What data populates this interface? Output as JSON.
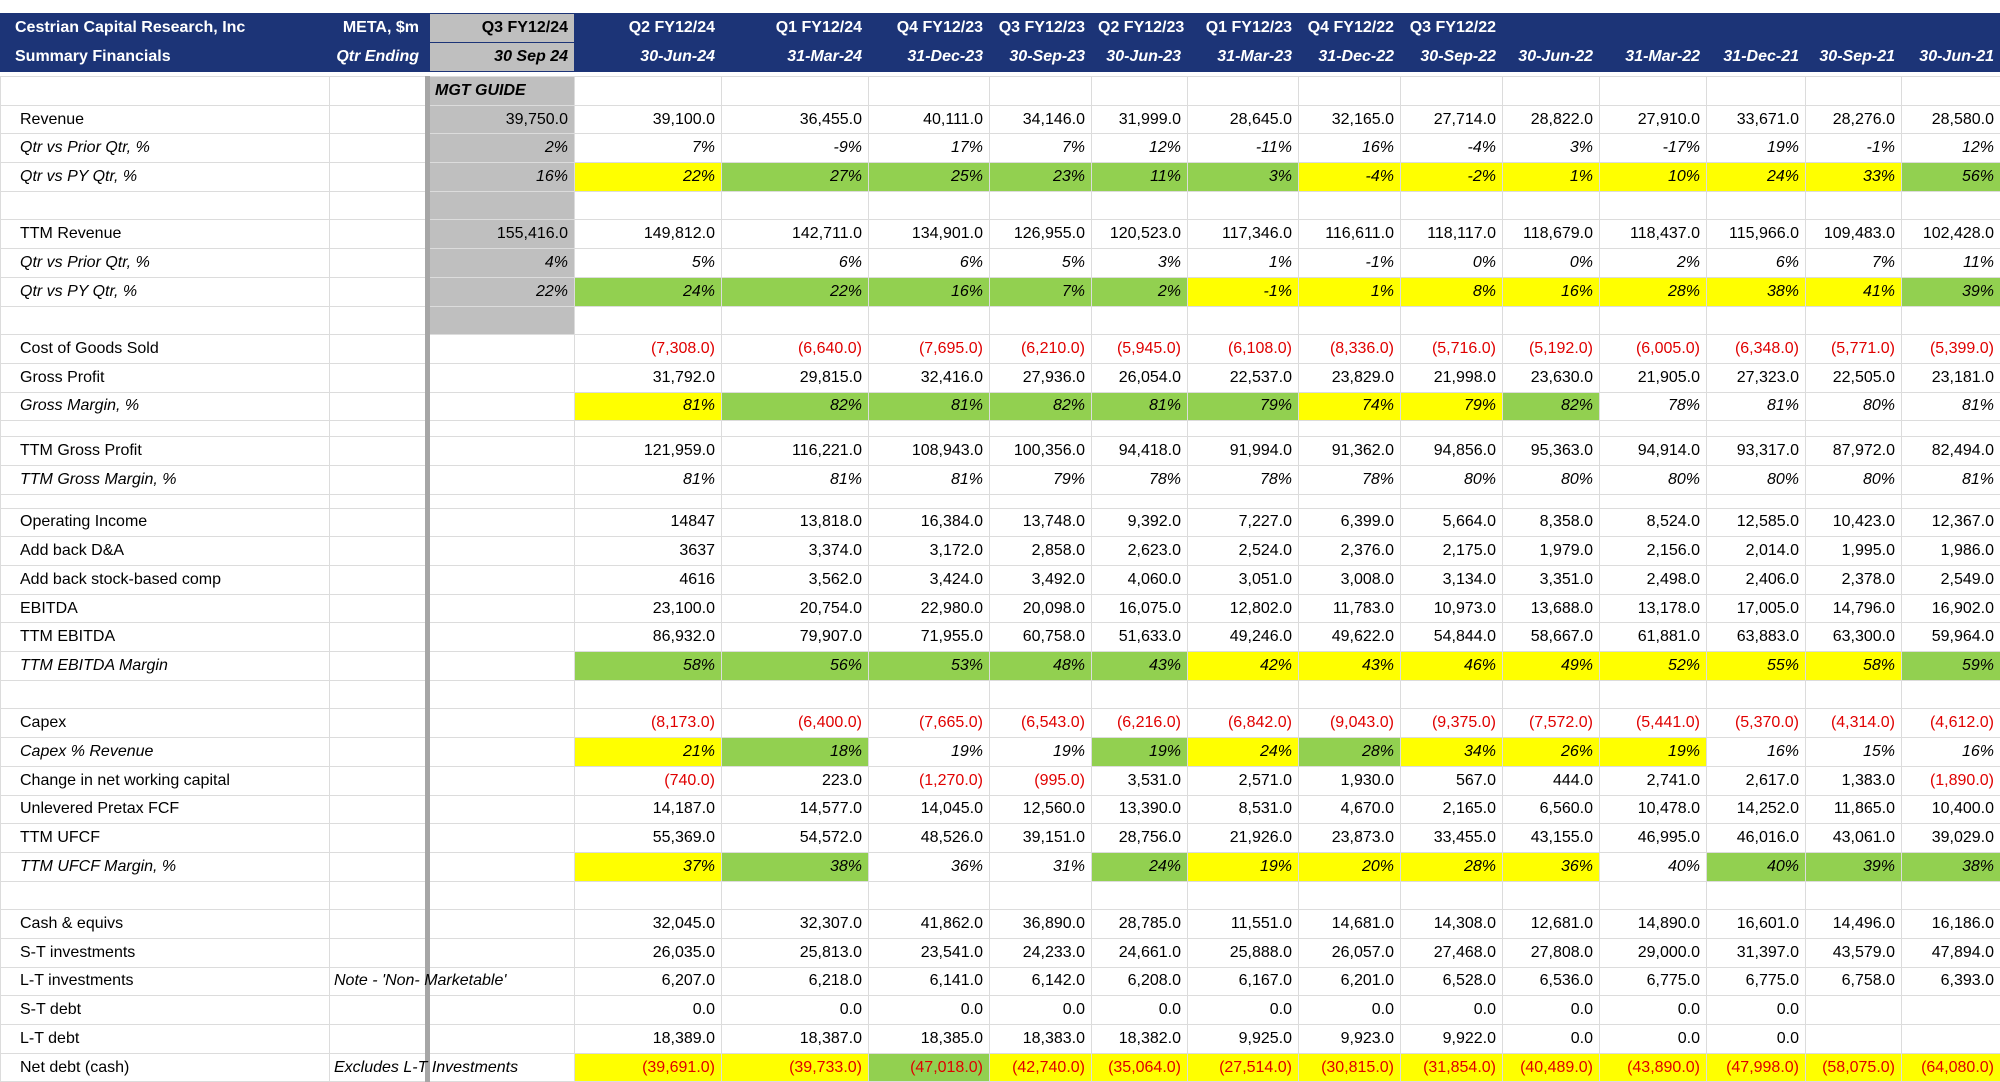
{
  "header": {
    "title": "Cestrian Capital Research, Inc",
    "subtitle": "Summary Financials",
    "ticker": "META, $m",
    "date_label": "Qtr Ending",
    "guide_label": "MGT GUIDE"
  },
  "columns": [
    {
      "period": "Q3 FY12/24",
      "date": "30 Sep 24"
    },
    {
      "period": "Q2 FY12/24",
      "date": "30-Jun-24"
    },
    {
      "period": "Q1 FY12/24",
      "date": "31-Mar-24"
    },
    {
      "period": "Q4 FY12/23",
      "date": "31-Dec-23"
    },
    {
      "period": "Q3 FY12/23",
      "date": "30-Sep-23"
    },
    {
      "period": "Q2 FY12/23",
      "date": "30-Jun-23"
    },
    {
      "period": "Q1 FY12/23",
      "date": "31-Mar-23"
    },
    {
      "period": "Q4 FY12/22",
      "date": "31-Dec-22"
    },
    {
      "period": "Q3 FY12/22",
      "date": "30-Sep-22"
    },
    {
      "date": "30-Jun-22"
    },
    {
      "date": "31-Mar-22"
    },
    {
      "date": "31-Dec-21"
    },
    {
      "date": "30-Sep-21"
    },
    {
      "date": "30-Jun-21"
    }
  ],
  "rows": [
    {
      "label": "Revenue",
      "values": [
        "39,750.0",
        "39,100.0",
        "36,455.0",
        "40,111.0",
        "34,146.0",
        "31,999.0",
        "28,645.0",
        "32,165.0",
        "27,714.0",
        "28,822.0",
        "27,910.0",
        "33,671.0",
        "28,276.0",
        "28,580.0"
      ],
      "fills": [
        "#bfbfbf",
        null,
        null,
        null,
        null,
        null,
        null,
        null,
        null,
        null,
        null,
        null,
        null,
        null
      ]
    },
    {
      "label": "Qtr vs Prior Qtr, %",
      "italic": true,
      "values": [
        "2%",
        "7%",
        "-9%",
        "17%",
        "7%",
        "12%",
        "-11%",
        "16%",
        "-4%",
        "3%",
        "-17%",
        "19%",
        "-1%",
        "12%"
      ],
      "fills": [
        "#bfbfbf",
        null,
        null,
        null,
        null,
        null,
        null,
        null,
        null,
        null,
        null,
        null,
        null,
        null
      ]
    },
    {
      "label": "Qtr vs PY Qtr, %",
      "italic": true,
      "values": [
        "16%",
        "22%",
        "27%",
        "25%",
        "23%",
        "11%",
        "3%",
        "-4%",
        "-2%",
        "1%",
        "10%",
        "24%",
        "33%",
        "56%"
      ],
      "fills": [
        "#bfbfbf",
        "#ffff00",
        "#92d050",
        "#92d050",
        "#92d050",
        "#92d050",
        "#92d050",
        "#ffff00",
        "#ffff00",
        "#ffff00",
        "#ffff00",
        "#ffff00",
        "#ffff00",
        "#92d050"
      ]
    },
    {
      "label": "TTM Revenue",
      "values": [
        "155,416.0",
        "149,812.0",
        "142,711.0",
        "134,901.0",
        "126,955.0",
        "120,523.0",
        "117,346.0",
        "116,611.0",
        "118,117.0",
        "118,679.0",
        "118,437.0",
        "115,966.0",
        "109,483.0",
        "102,428.0"
      ],
      "fills": [
        "#bfbfbf",
        null,
        null,
        null,
        null,
        null,
        null,
        null,
        null,
        null,
        null,
        null,
        null,
        null
      ]
    },
    {
      "label": "Qtr vs Prior Qtr, %",
      "italic": true,
      "values": [
        "4%",
        "5%",
        "6%",
        "6%",
        "5%",
        "3%",
        "1%",
        "-1%",
        "0%",
        "0%",
        "2%",
        "6%",
        "7%",
        "11%"
      ],
      "fills": [
        "#bfbfbf",
        null,
        null,
        null,
        null,
        null,
        null,
        null,
        null,
        null,
        null,
        null,
        null,
        null
      ]
    },
    {
      "label": "Qtr vs PY Qtr, %",
      "italic": true,
      "values": [
        "22%",
        "24%",
        "22%",
        "16%",
        "7%",
        "2%",
        "-1%",
        "1%",
        "8%",
        "16%",
        "28%",
        "38%",
        "41%",
        "39%"
      ],
      "fills": [
        "#bfbfbf",
        "#92d050",
        "#92d050",
        "#92d050",
        "#92d050",
        "#92d050",
        "#ffff00",
        "#ffff00",
        "#ffff00",
        "#ffff00",
        "#ffff00",
        "#ffff00",
        "#ffff00",
        "#92d050"
      ]
    },
    {
      "label": "Cost of Goods Sold",
      "values": [
        null,
        "(7,308.0)",
        "(6,640.0)",
        "(7,695.0)",
        "(6,210.0)",
        "(5,945.0)",
        "(6,108.0)",
        "(8,336.0)",
        "(5,716.0)",
        "(5,192.0)",
        "(6,005.0)",
        "(6,348.0)",
        "(5,771.0)",
        "(5,399.0)"
      ]
    },
    {
      "label": "Gross Profit",
      "values": [
        null,
        "31,792.0",
        "29,815.0",
        "32,416.0",
        "27,936.0",
        "26,054.0",
        "22,537.0",
        "23,829.0",
        "21,998.0",
        "23,630.0",
        "21,905.0",
        "27,323.0",
        "22,505.0",
        "23,181.0"
      ]
    },
    {
      "label": "Gross Margin, %",
      "italic": true,
      "values": [
        null,
        "81%",
        "82%",
        "81%",
        "82%",
        "81%",
        "79%",
        "74%",
        "79%",
        "82%",
        "78%",
        "81%",
        "80%",
        "81%"
      ],
      "fills": [
        null,
        "#ffff00",
        "#92d050",
        "#92d050",
        "#92d050",
        "#92d050",
        "#92d050",
        "#ffff00",
        "#ffff00",
        "#92d050",
        null,
        null,
        null,
        null
      ]
    },
    {
      "label": "TTM Gross Profit",
      "values": [
        null,
        "121,959.0",
        "116,221.0",
        "108,943.0",
        "100,356.0",
        "94,418.0",
        "91,994.0",
        "91,362.0",
        "94,856.0",
        "95,363.0",
        "94,914.0",
        "93,317.0",
        "87,972.0",
        "82,494.0"
      ]
    },
    {
      "label": "TTM Gross Margin, %",
      "italic": true,
      "values": [
        null,
        "81%",
        "81%",
        "81%",
        "79%",
        "78%",
        "78%",
        "78%",
        "80%",
        "80%",
        "80%",
        "80%",
        "80%",
        "81%"
      ]
    },
    {
      "label": "Operating Income",
      "values": [
        null,
        "14847",
        "13,818.0",
        "16,384.0",
        "13,748.0",
        "9,392.0",
        "7,227.0",
        "6,399.0",
        "5,664.0",
        "8,358.0",
        "8,524.0",
        "12,585.0",
        "10,423.0",
        "12,367.0"
      ]
    },
    {
      "label": "Add back D&A",
      "values": [
        null,
        "3637",
        "3,374.0",
        "3,172.0",
        "2,858.0",
        "2,623.0",
        "2,524.0",
        "2,376.0",
        "2,175.0",
        "1,979.0",
        "2,156.0",
        "2,014.0",
        "1,995.0",
        "1,986.0"
      ]
    },
    {
      "label": "Add back stock-based comp",
      "values": [
        null,
        "4616",
        "3,562.0",
        "3,424.0",
        "3,492.0",
        "4,060.0",
        "3,051.0",
        "3,008.0",
        "3,134.0",
        "3,351.0",
        "2,498.0",
        "2,406.0",
        "2,378.0",
        "2,549.0"
      ]
    },
    {
      "label": "EBITDA",
      "values": [
        null,
        "23,100.0",
        "20,754.0",
        "22,980.0",
        "20,098.0",
        "16,075.0",
        "12,802.0",
        "11,783.0",
        "10,973.0",
        "13,688.0",
        "13,178.0",
        "17,005.0",
        "14,796.0",
        "16,902.0"
      ]
    },
    {
      "label": "TTM EBITDA",
      "values": [
        null,
        "86,932.0",
        "79,907.0",
        "71,955.0",
        "60,758.0",
        "51,633.0",
        "49,246.0",
        "49,622.0",
        "54,844.0",
        "58,667.0",
        "61,881.0",
        "63,883.0",
        "63,300.0",
        "59,964.0"
      ]
    },
    {
      "label": "TTM EBITDA Margin",
      "italic": true,
      "values": [
        null,
        "58%",
        "56%",
        "53%",
        "48%",
        "43%",
        "42%",
        "43%",
        "46%",
        "49%",
        "52%",
        "55%",
        "58%",
        "59%"
      ],
      "fills": [
        null,
        "#92d050",
        "#92d050",
        "#92d050",
        "#92d050",
        "#92d050",
        "#ffff00",
        "#ffff00",
        "#ffff00",
        "#ffff00",
        "#ffff00",
        "#ffff00",
        "#ffff00",
        "#92d050"
      ]
    },
    {
      "label": "Capex",
      "values": [
        null,
        "(8,173.0)",
        "(6,400.0)",
        "(7,665.0)",
        "(6,543.0)",
        "(6,216.0)",
        "(6,842.0)",
        "(9,043.0)",
        "(9,375.0)",
        "(7,572.0)",
        "(5,441.0)",
        "(5,370.0)",
        "(4,314.0)",
        "(4,612.0)"
      ]
    },
    {
      "label": "Capex % Revenue",
      "italic": true,
      "values": [
        null,
        "21%",
        "18%",
        "19%",
        "19%",
        "19%",
        "24%",
        "28%",
        "34%",
        "26%",
        "19%",
        "16%",
        "15%",
        "16%"
      ],
      "fills": [
        null,
        "#ffff00",
        "#92d050",
        null,
        null,
        "#92d050",
        "#ffff00",
        "#92d050",
        "#ffff00",
        "#ffff00",
        "#ffff00",
        null,
        null,
        null
      ]
    },
    {
      "label": "Change in net working capital",
      "values": [
        null,
        "(740.0)",
        "223.0",
        "(1,270.0)",
        "(995.0)",
        "3,531.0",
        "2,571.0",
        "1,930.0",
        "567.0",
        "444.0",
        "2,741.0",
        "2,617.0",
        "1,383.0",
        "(1,890.0)"
      ]
    },
    {
      "label": "Unlevered Pretax FCF",
      "values": [
        null,
        "14,187.0",
        "14,577.0",
        "14,045.0",
        "12,560.0",
        "13,390.0",
        "8,531.0",
        "4,670.0",
        "2,165.0",
        "6,560.0",
        "10,478.0",
        "14,252.0",
        "11,865.0",
        "10,400.0"
      ]
    },
    {
      "label": "TTM UFCF",
      "values": [
        null,
        "55,369.0",
        "54,572.0",
        "48,526.0",
        "39,151.0",
        "28,756.0",
        "21,926.0",
        "23,873.0",
        "33,455.0",
        "43,155.0",
        "46,995.0",
        "46,016.0",
        "43,061.0",
        "39,029.0"
      ]
    },
    {
      "label": "TTM UFCF Margin, %",
      "italic": true,
      "values": [
        null,
        "37%",
        "38%",
        "36%",
        "31%",
        "24%",
        "19%",
        "20%",
        "28%",
        "36%",
        "40%",
        "40%",
        "39%",
        "38%"
      ],
      "fills": [
        null,
        "#ffff00",
        "#92d050",
        null,
        null,
        "#92d050",
        "#ffff00",
        "#ffff00",
        "#ffff00",
        "#ffff00",
        null,
        "#92d050",
        "#92d050",
        "#92d050"
      ]
    },
    {
      "label": "Cash & equivs",
      "values": [
        null,
        "32,045.0",
        "32,307.0",
        "41,862.0",
        "36,890.0",
        "28,785.0",
        "11,551.0",
        "14,681.0",
        "14,308.0",
        "12,681.0",
        "14,890.0",
        "16,601.0",
        "14,496.0",
        "16,186.0"
      ]
    },
    {
      "label": "S-T investments",
      "values": [
        null,
        "26,035.0",
        "25,813.0",
        "23,541.0",
        "24,233.0",
        "24,661.0",
        "25,888.0",
        "26,057.0",
        "27,468.0",
        "27,808.0",
        "29,000.0",
        "31,397.0",
        "43,579.0",
        "47,894.0"
      ]
    },
    {
      "label": "L-T investments",
      "note": "Note - 'Non- Marketable'",
      "values": [
        null,
        "6,207.0",
        "6,218.0",
        "6,141.0",
        "6,142.0",
        "6,208.0",
        "6,167.0",
        "6,201.0",
        "6,528.0",
        "6,536.0",
        "6,775.0",
        "6,775.0",
        "6,758.0",
        "6,393.0"
      ]
    },
    {
      "label": "S-T debt",
      "values": [
        null,
        "0.0",
        "0.0",
        "0.0",
        "0.0",
        "0.0",
        "0.0",
        "0.0",
        "0.0",
        "0.0",
        "0.0",
        "0.0",
        null,
        null
      ]
    },
    {
      "label": "L-T debt",
      "values": [
        null,
        "18,389.0",
        "18,387.0",
        "18,385.0",
        "18,383.0",
        "18,382.0",
        "9,925.0",
        "9,923.0",
        "9,922.0",
        "0.0",
        "0.0",
        "0.0",
        null,
        null
      ]
    },
    {
      "label": "Net debt (cash)",
      "note": "Excludes L-T  Investments",
      "values": [
        null,
        "(39,691.0)",
        "(39,733.0)",
        "(47,018.0)",
        "(42,740.0)",
        "(35,064.0)",
        "(27,514.0)",
        "(30,815.0)",
        "(31,854.0)",
        "(40,489.0)",
        "(43,890.0)",
        "(47,998.0)",
        "(58,075.0)",
        "(64,080.0)"
      ],
      "fills": [
        null,
        "#ffff00",
        "#ffff00",
        "#92d050",
        "#ffff00",
        "#ffff00",
        "#ffff00",
        "#ffff00",
        "#ffff00",
        "#ffff00",
        "#ffff00",
        "#ffff00",
        "#ffff00",
        "#ffff00"
      ]
    }
  ]
}
